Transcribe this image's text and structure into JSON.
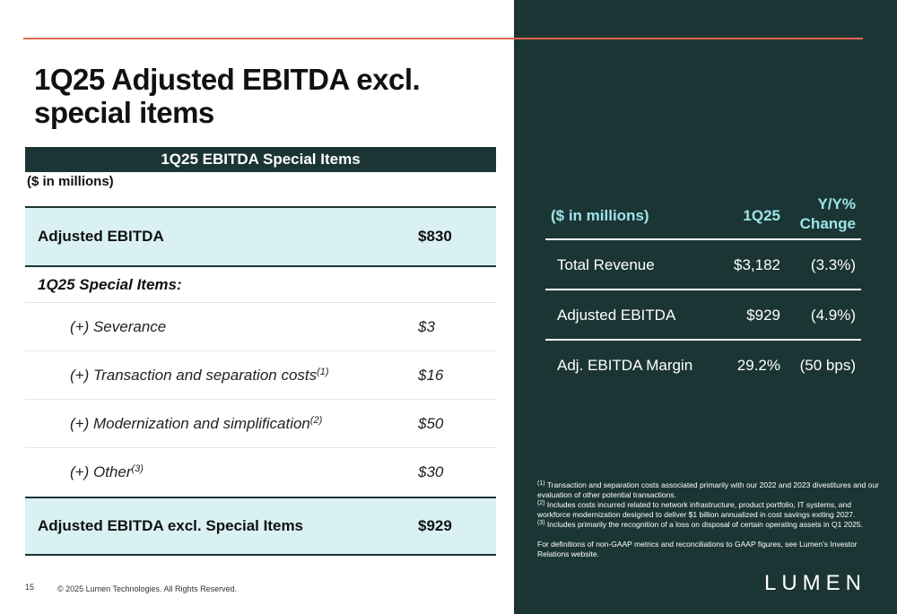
{
  "slide": {
    "title": "1Q25 Adjusted EBITDA excl. special items",
    "page_number": "15",
    "copyright": "© 2025 Lumen Technologies. All Rights Reserved.",
    "logo_text": "LUMEN"
  },
  "special_items_table": {
    "header": "1Q25 EBITDA Special Items",
    "units": "($ in millions)",
    "adjusted_ebitda": {
      "label": "Adjusted EBITDA",
      "value": "$830"
    },
    "subheading": "1Q25 Special Items:",
    "items": [
      {
        "label": "(+) Severance",
        "sup": "",
        "value": "$3"
      },
      {
        "label": "(+) Transaction and separation costs",
        "sup": "(1)",
        "value": "$16"
      },
      {
        "label": "(+) Modernization and simplification",
        "sup": "(2)",
        "value": "$50"
      },
      {
        "label": "(+) Other",
        "sup": "(3)",
        "value": "$30"
      }
    ],
    "total": {
      "label": "Adjusted EBITDA excl. Special Items",
      "value": "$929"
    }
  },
  "summary_table": {
    "headers": {
      "units": "($ in millions)",
      "period": "1Q25",
      "change_line1": "Y/Y%",
      "change_line2": "Change"
    },
    "rows": [
      {
        "label": "Total Revenue",
        "value": "$3,182",
        "change": "(3.3%)"
      },
      {
        "label": "Adjusted EBITDA",
        "value": "$929",
        "change": "(4.9%)"
      },
      {
        "label": "Adj. EBITDA Margin",
        "value": "29.2%",
        "change": "(50 bps)"
      }
    ]
  },
  "footnotes": {
    "items": [
      {
        "marker": "(1)",
        "text": " Transaction and separation costs associated primarily with our 2022 and 2023 divestitures and our evaluation of other potential transactions."
      },
      {
        "marker": "(2)",
        "text": " Includes costs incurred related to network infrastructure, product portfolio, IT systems, and workforce modernization designed to deliver $1 billion annualized in cost savings exiting 2027."
      },
      {
        "marker": "(3)",
        "text": " Includes primarily the recognition of a loss on disposal of certain operating assets in Q1 2025."
      }
    ],
    "definitions": "For definitions of non-GAAP metrics and reconciliations to GAAP figures, see Lumen's Investor Relations website."
  },
  "colors": {
    "panel": "#1b3535",
    "accent_rule": "#e8664e",
    "highlight_row": "#daf1f3",
    "header_text": "#9fe3e8"
  }
}
